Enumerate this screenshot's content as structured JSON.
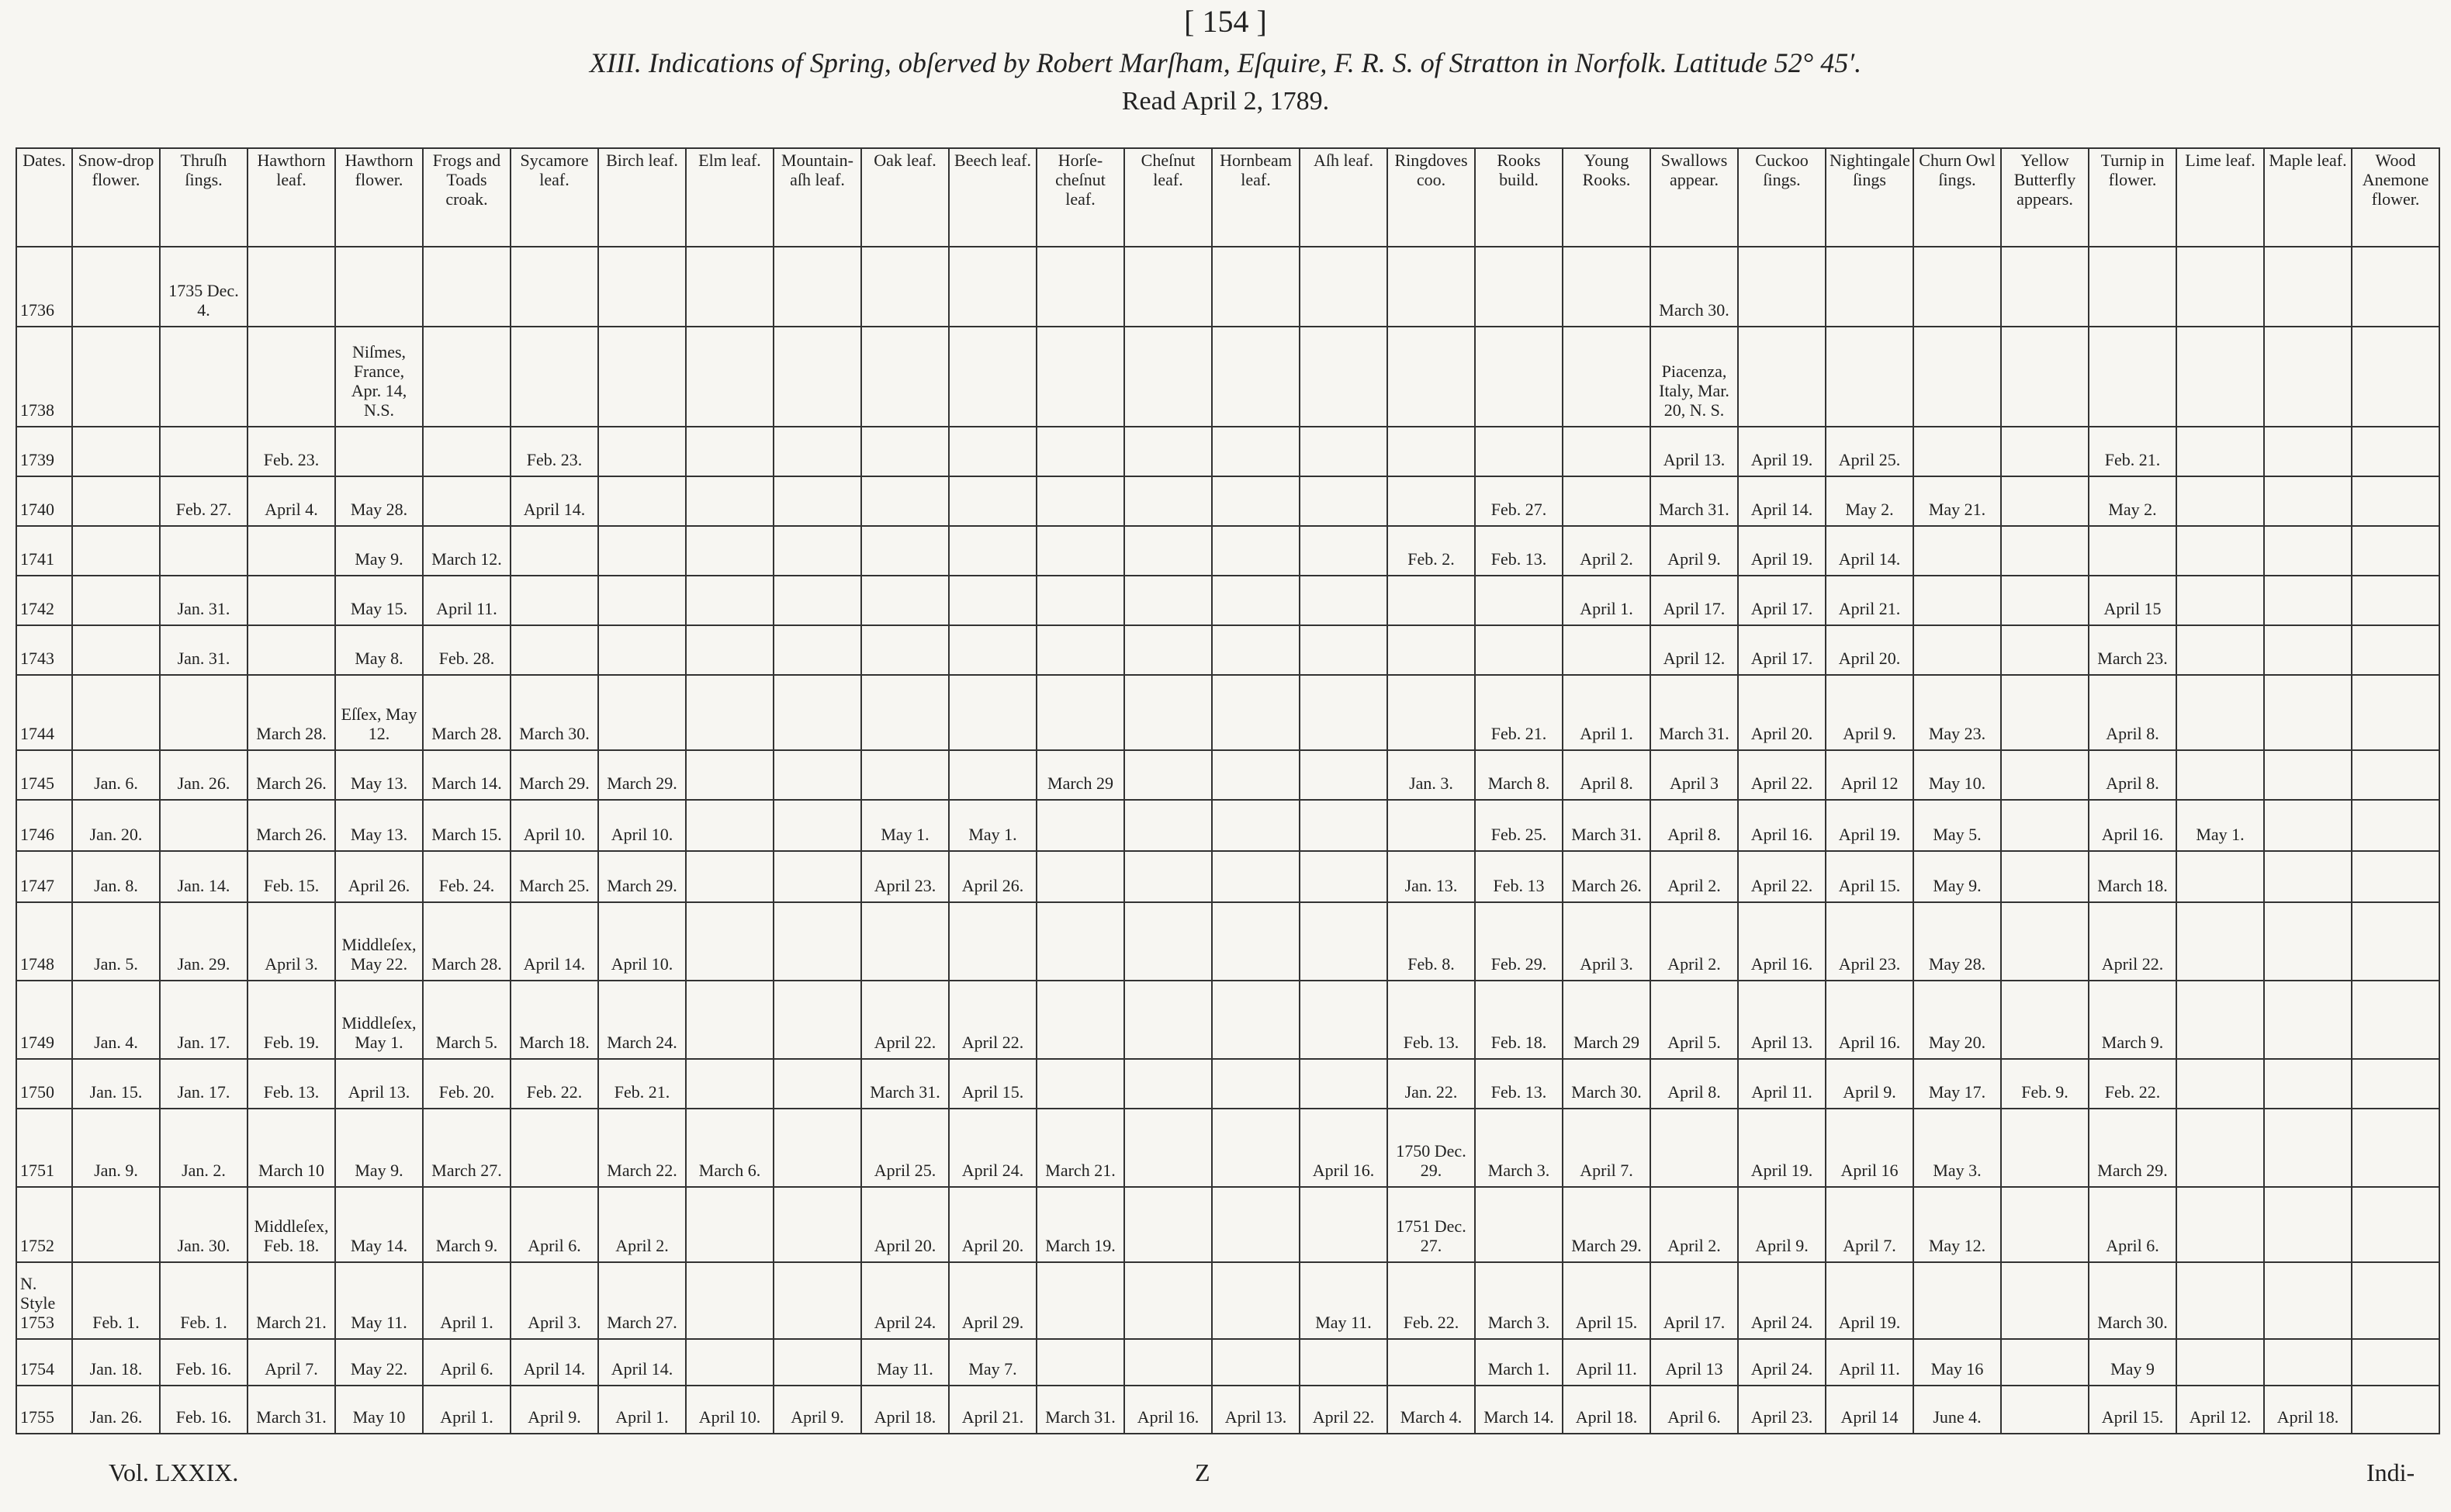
{
  "header": {
    "page": "[ 154 ]",
    "title": "XIII. Indications of Spring, obſerved by Robert Marſham, Eſquire, F. R. S. of Stratton in Norfolk. Latitude 52° 45′.",
    "subtitle": "Read April 2, 1789."
  },
  "table": {
    "columns": [
      "Dates.",
      "Snow-drop flower.",
      "Thruſh ſings.",
      "Hawthorn leaf.",
      "Hawthorn flower.",
      "Frogs and Toads croak.",
      "Sycamore leaf.",
      "Birch leaf.",
      "Elm leaf.",
      "Mountain-aſh leaf.",
      "Oak leaf.",
      "Beech leaf.",
      "Horſe-cheſnut leaf.",
      "Cheſnut leaf.",
      "Hornbeam leaf.",
      "Aſh leaf.",
      "Ringdoves coo.",
      "Rooks build.",
      "Young Rooks.",
      "Swallows appear.",
      "Cuckoo ſings.",
      "Nightingale ſings",
      "Churn Owl ſings.",
      "Yellow Butterfly appears.",
      "Turnip in flower.",
      "Lime leaf.",
      "Maple leaf.",
      "Wood Anemone flower."
    ],
    "rows": [
      [
        "1736",
        null,
        "1735 Dec. 4.",
        null,
        null,
        null,
        null,
        null,
        null,
        null,
        null,
        null,
        null,
        null,
        null,
        null,
        null,
        null,
        null,
        "March 30.",
        null,
        null,
        null,
        null,
        null,
        null,
        null,
        null
      ],
      [
        "1738",
        null,
        null,
        null,
        "Niſmes, France, Apr. 14, N.S.",
        null,
        null,
        null,
        null,
        null,
        null,
        null,
        null,
        null,
        null,
        null,
        null,
        null,
        null,
        "Piacenza, Italy, Mar. 20, N. S.",
        null,
        null,
        null,
        null,
        null,
        null,
        null,
        null
      ],
      [
        "1739",
        null,
        null,
        "Feb. 23.",
        null,
        null,
        "Feb. 23.",
        null,
        null,
        null,
        null,
        null,
        null,
        null,
        null,
        null,
        null,
        null,
        null,
        "April 13.",
        "April 19.",
        "April 25.",
        null,
        null,
        "Feb. 21.",
        null,
        null,
        null
      ],
      [
        "1740",
        null,
        "Feb. 27.",
        "April 4.",
        "May 28.",
        null,
        "April 14.",
        null,
        null,
        null,
        null,
        null,
        null,
        null,
        null,
        null,
        null,
        "Feb. 27.",
        null,
        "March 31.",
        "April 14.",
        "May 2.",
        "May 21.",
        null,
        "May 2.",
        null,
        null,
        null
      ],
      [
        "1741",
        null,
        null,
        null,
        "May 9.",
        "March 12.",
        null,
        null,
        null,
        null,
        null,
        null,
        null,
        null,
        null,
        null,
        "Feb. 2.",
        "Feb. 13.",
        "April 2.",
        "April 9.",
        "April 19.",
        "April 14.",
        null,
        null,
        null,
        null,
        null,
        null
      ],
      [
        "1742",
        null,
        "Jan. 31.",
        null,
        "May 15.",
        "April 11.",
        null,
        null,
        null,
        null,
        null,
        null,
        null,
        null,
        null,
        null,
        null,
        null,
        "April 1.",
        "April 17.",
        "April 17.",
        "April 21.",
        null,
        null,
        "April 15",
        null,
        null,
        null
      ],
      [
        "1743",
        null,
        "Jan. 31.",
        null,
        "May 8.",
        "Feb. 28.",
        null,
        null,
        null,
        null,
        null,
        null,
        null,
        null,
        null,
        null,
        null,
        null,
        null,
        "April 12.",
        "April 17.",
        "April 20.",
        null,
        null,
        "March 23.",
        null,
        null,
        null
      ],
      [
        "1744",
        null,
        null,
        "March 28.",
        "Eſſex, May 12.",
        "March 28.",
        "March 30.",
        null,
        null,
        null,
        null,
        null,
        null,
        null,
        null,
        null,
        null,
        "Feb. 21.",
        "April 1.",
        "March 31.",
        "April 20.",
        "April 9.",
        "May 23.",
        null,
        "April 8.",
        null,
        null,
        null
      ],
      [
        "1745",
        "Jan. 6.",
        "Jan. 26.",
        "March 26.",
        "May 13.",
        "March 14.",
        "March 29.",
        "March 29.",
        null,
        null,
        null,
        null,
        "March 29",
        null,
        null,
        null,
        "Jan. 3.",
        "March 8.",
        "April 8.",
        "April 3",
        "April 22.",
        "April 12",
        "May 10.",
        null,
        "April 8.",
        null,
        null,
        null
      ],
      [
        "1746",
        "Jan. 20.",
        null,
        "March 26.",
        "May 13.",
        "March 15.",
        "April 10.",
        "April 10.",
        null,
        null,
        "May 1.",
        "May 1.",
        null,
        null,
        null,
        null,
        null,
        "Feb. 25.",
        "March 31.",
        "April 8.",
        "April 16.",
        "April 19.",
        "May 5.",
        null,
        "April 16.",
        "May 1.",
        null,
        null
      ],
      [
        "1747",
        "Jan. 8.",
        "Jan. 14.",
        "Feb. 15.",
        "April 26.",
        "Feb. 24.",
        "March 25.",
        "March 29.",
        null,
        null,
        "April 23.",
        "April 26.",
        null,
        null,
        null,
        null,
        "Jan. 13.",
        "Feb. 13",
        "March 26.",
        "April 2.",
        "April 22.",
        "April 15.",
        "May 9.",
        null,
        "March 18.",
        null,
        null,
        null
      ],
      [
        "1748",
        "Jan. 5.",
        "Jan. 29.",
        "April 3.",
        "Middleſex, May 22.",
        "March 28.",
        "April 14.",
        "April 10.",
        null,
        null,
        null,
        null,
        null,
        null,
        null,
        null,
        "Feb. 8.",
        "Feb. 29.",
        "April 3.",
        "April 2.",
        "April 16.",
        "April 23.",
        "May 28.",
        null,
        "April 22.",
        null,
        null,
        null
      ],
      [
        "1749",
        "Jan. 4.",
        "Jan. 17.",
        "Feb. 19.",
        "Middleſex, May 1.",
        "March 5.",
        "March 18.",
        "March 24.",
        null,
        null,
        "April 22.",
        "April 22.",
        null,
        null,
        null,
        null,
        "Feb. 13.",
        "Feb. 18.",
        "March 29",
        "April 5.",
        "April 13.",
        "April 16.",
        "May 20.",
        null,
        "March 9.",
        null,
        null,
        null
      ],
      [
        "1750",
        "Jan. 15.",
        "Jan. 17.",
        "Feb. 13.",
        "April 13.",
        "Feb. 20.",
        "Feb. 22.",
        "Feb. 21.",
        null,
        null,
        "March 31.",
        "April 15.",
        null,
        null,
        null,
        null,
        "Jan. 22.",
        "Feb. 13.",
        "March 30.",
        "April 8.",
        "April 11.",
        "April 9.",
        "May 17.",
        "Feb. 9.",
        "Feb. 22.",
        null,
        null,
        null
      ],
      [
        "1751",
        "Jan. 9.",
        "Jan. 2.",
        "March 10",
        "May 9.",
        "March 27.",
        null,
        "March 22.",
        "March 6.",
        null,
        "April 25.",
        "April 24.",
        "March 21.",
        null,
        null,
        "April 16.",
        "1750 Dec. 29.",
        "March 3.",
        "April 7.",
        null,
        "April 19.",
        "April 16",
        "May 3.",
        null,
        "March 29.",
        null,
        null,
        null
      ],
      [
        "1752",
        null,
        "Jan. 30.",
        "Middleſex, Feb. 18.",
        "May 14.",
        "March 9.",
        "April 6.",
        "April 2.",
        null,
        null,
        "April 20.",
        "April 20.",
        "March 19.",
        null,
        null,
        null,
        "1751 Dec. 27.",
        null,
        "March 29.",
        "April 2.",
        "April 9.",
        "April 7.",
        "May 12.",
        null,
        "April 6.",
        null,
        null,
        null
      ],
      [
        "N. Style 1753",
        "Feb. 1.",
        "Feb. 1.",
        "March 21.",
        "May 11.",
        "April 1.",
        "April 3.",
        "March 27.",
        null,
        null,
        "April 24.",
        "April 29.",
        null,
        null,
        null,
        "May 11.",
        "Feb. 22.",
        "March 3.",
        "April 15.",
        "April 17.",
        "April 24.",
        "April 19.",
        null,
        null,
        "March 30.",
        null,
        null,
        null
      ],
      [
        "1754",
        "Jan. 18.",
        "Feb. 16.",
        "April 7.",
        "May 22.",
        "April 6.",
        "April 14.",
        "April 14.",
        null,
        null,
        "May 11.",
        "May 7.",
        null,
        null,
        null,
        null,
        null,
        "March 1.",
        "April 11.",
        "April 13",
        "April 24.",
        "April 11.",
        "May 16",
        null,
        "May 9",
        null,
        null,
        null
      ],
      [
        "1755",
        "Jan. 26.",
        "Feb. 16.",
        "March 31.",
        "May 10",
        "April 1.",
        "April 9.",
        "April 1.",
        "April 10.",
        "April 9.",
        "April 18.",
        "April 21.",
        "March 31.",
        "April 16.",
        "April 13.",
        "April 22.",
        "March 4.",
        "March 14.",
        "April 18.",
        "April 6.",
        "April 23.",
        "April 14",
        "June 4.",
        null,
        "April 15.",
        "April 12.",
        "April 18.",
        null
      ]
    ]
  },
  "footer": {
    "volume": "Vol. LXXIX.",
    "signature": "Z",
    "catchword": "Indi-"
  }
}
